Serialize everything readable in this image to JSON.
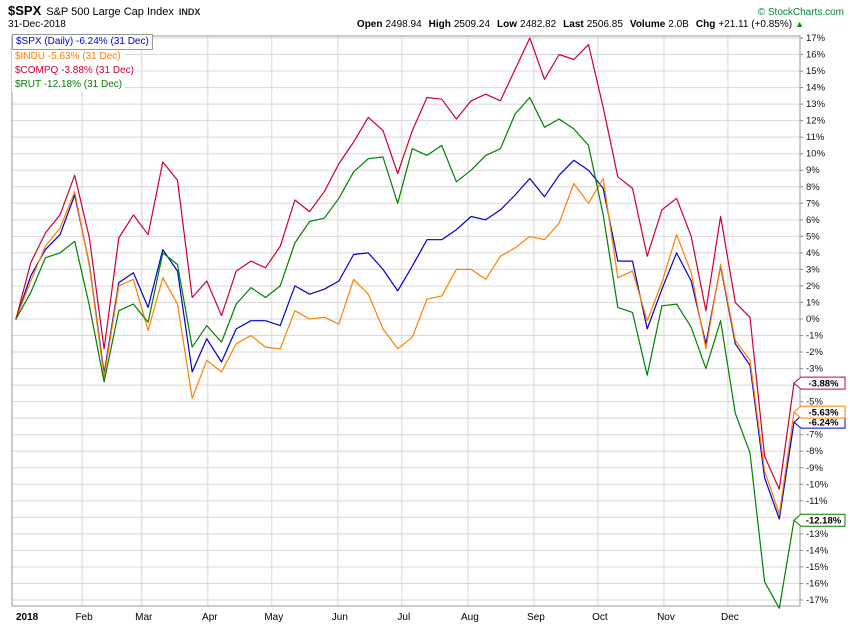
{
  "header": {
    "symbol": "$SPX",
    "index_name": "S&P 500 Large Cap Index",
    "exchange": "INDX",
    "copyright": "© StockCharts.com",
    "date": "31-Dec-2018",
    "quote": [
      {
        "label": "Open",
        "value": "2498.94"
      },
      {
        "label": "High",
        "value": "2509.24"
      },
      {
        "label": "Low",
        "value": "2482.82"
      },
      {
        "label": "Last",
        "value": "2506.85"
      },
      {
        "label": "Volume",
        "value": "2.0B"
      },
      {
        "label": "Chg",
        "value": "+21.11 (+0.85%)"
      }
    ],
    "chg_arrow": "▲",
    "chg_up_color": "#009900"
  },
  "chart_data": {
    "type": "line",
    "title": "$SPX S&P 500 Large Cap Index — 2018 percent change comparison of $SPX, $INDU, $COMPQ, $RUT",
    "granularity": "daily chart, values captured at ~weekly resolution (Jan 1 – Dec 31, 2018)",
    "x_axis": {
      "labels": [
        "2018",
        "Feb",
        "Mar",
        "Apr",
        "May",
        "Jun",
        "Jul",
        "Aug",
        "Sep",
        "Oct",
        "Nov",
        "Dec"
      ]
    },
    "y_axis": {
      "min": -17,
      "max": 17,
      "step": 1,
      "unit": "%"
    },
    "grid": true,
    "legend_position": "top-left",
    "series": [
      {
        "name": "$SPX",
        "legend": "$SPX (Daily) -6.24% (31 Dec)",
        "color": "#0000CC",
        "end_label": "-6.24%",
        "final_pct": -6.24,
        "values": [
          0,
          2.6,
          4.2,
          5.1,
          7.5,
          3.3,
          -3.3,
          2.2,
          2.8,
          0.7,
          4.2,
          2.9,
          -3.2,
          -1.2,
          -2.6,
          -0.6,
          -0.1,
          -0.1,
          -0.4,
          2.0,
          1.5,
          1.8,
          2.3,
          3.9,
          4.0,
          3.0,
          1.7,
          3.2,
          4.8,
          4.8,
          5.4,
          6.2,
          6.0,
          6.6,
          7.5,
          8.5,
          7.4,
          8.7,
          9.6,
          9.0,
          7.9,
          3.5,
          3.5,
          -0.6,
          1.8,
          4.0,
          2.3,
          -1.5,
          3.2,
          -1.5,
          -2.8,
          -9.6,
          -12.1,
          -6.24
        ]
      },
      {
        "name": "$INDU",
        "legend": "$INDU -5.63% (31 Dec)",
        "color": "#FF7F00",
        "end_label": "-5.63%",
        "final_pct": -5.63,
        "values": [
          0,
          2.3,
          4.4,
          5.5,
          7.7,
          3.2,
          -3.5,
          2.0,
          2.4,
          -0.7,
          2.5,
          0.9,
          -4.8,
          -2.5,
          -3.2,
          -1.5,
          -1.0,
          -1.7,
          -1.8,
          0.5,
          0.0,
          0.1,
          -0.3,
          2.4,
          1.5,
          -0.6,
          -1.8,
          -1.1,
          1.2,
          1.4,
          3.0,
          3.0,
          2.4,
          3.8,
          4.3,
          5.0,
          4.8,
          5.8,
          8.2,
          7.0,
          8.5,
          2.5,
          2.9,
          -0.1,
          2.2,
          5.1,
          2.8,
          -1.8,
          3.3,
          -1.3,
          -2.5,
          -9.2,
          -11.8,
          -5.63
        ]
      },
      {
        "name": "$COMPQ",
        "legend": "$COMPQ -3.88% (31 Dec)",
        "color": "#CC0033",
        "end_label": "-3.88%",
        "final_pct": -3.88,
        "values": [
          0,
          3.4,
          5.2,
          6.3,
          8.7,
          4.9,
          -1.8,
          4.9,
          6.3,
          5.1,
          9.5,
          8.4,
          1.3,
          2.3,
          0.2,
          2.9,
          3.5,
          3.1,
          4.4,
          7.2,
          6.5,
          7.7,
          9.4,
          10.7,
          12.2,
          11.4,
          8.8,
          11.4,
          13.4,
          13.3,
          12.1,
          13.2,
          13.6,
          13.2,
          15.1,
          17.0,
          14.5,
          16.0,
          15.7,
          16.6,
          12.8,
          8.6,
          7.9,
          3.8,
          6.6,
          7.3,
          5.0,
          0.5,
          6.2,
          1.0,
          0.1,
          -8.3,
          -10.3,
          -3.88
        ]
      },
      {
        "name": "$RUT",
        "legend": "$RUT -12.18% (31 Dec)",
        "color": "#008000",
        "end_label": "-12.18%",
        "final_pct": -12.18,
        "values": [
          0,
          1.6,
          3.7,
          4.0,
          4.7,
          0.8,
          -3.8,
          0.5,
          0.9,
          -0.2,
          4.0,
          3.3,
          -1.7,
          -0.4,
          -1.4,
          0.9,
          1.9,
          1.3,
          2.0,
          4.6,
          5.9,
          6.1,
          7.3,
          8.9,
          9.7,
          9.8,
          7.0,
          10.3,
          9.9,
          10.5,
          8.3,
          9.0,
          9.9,
          10.3,
          12.4,
          13.4,
          11.6,
          12.1,
          11.5,
          10.5,
          6.3,
          0.7,
          0.4,
          -3.4,
          0.8,
          0.9,
          -0.5,
          -3.0,
          -0.1,
          -5.7,
          -8.1,
          -15.9,
          -17.5,
          -12.18
        ]
      }
    ]
  }
}
